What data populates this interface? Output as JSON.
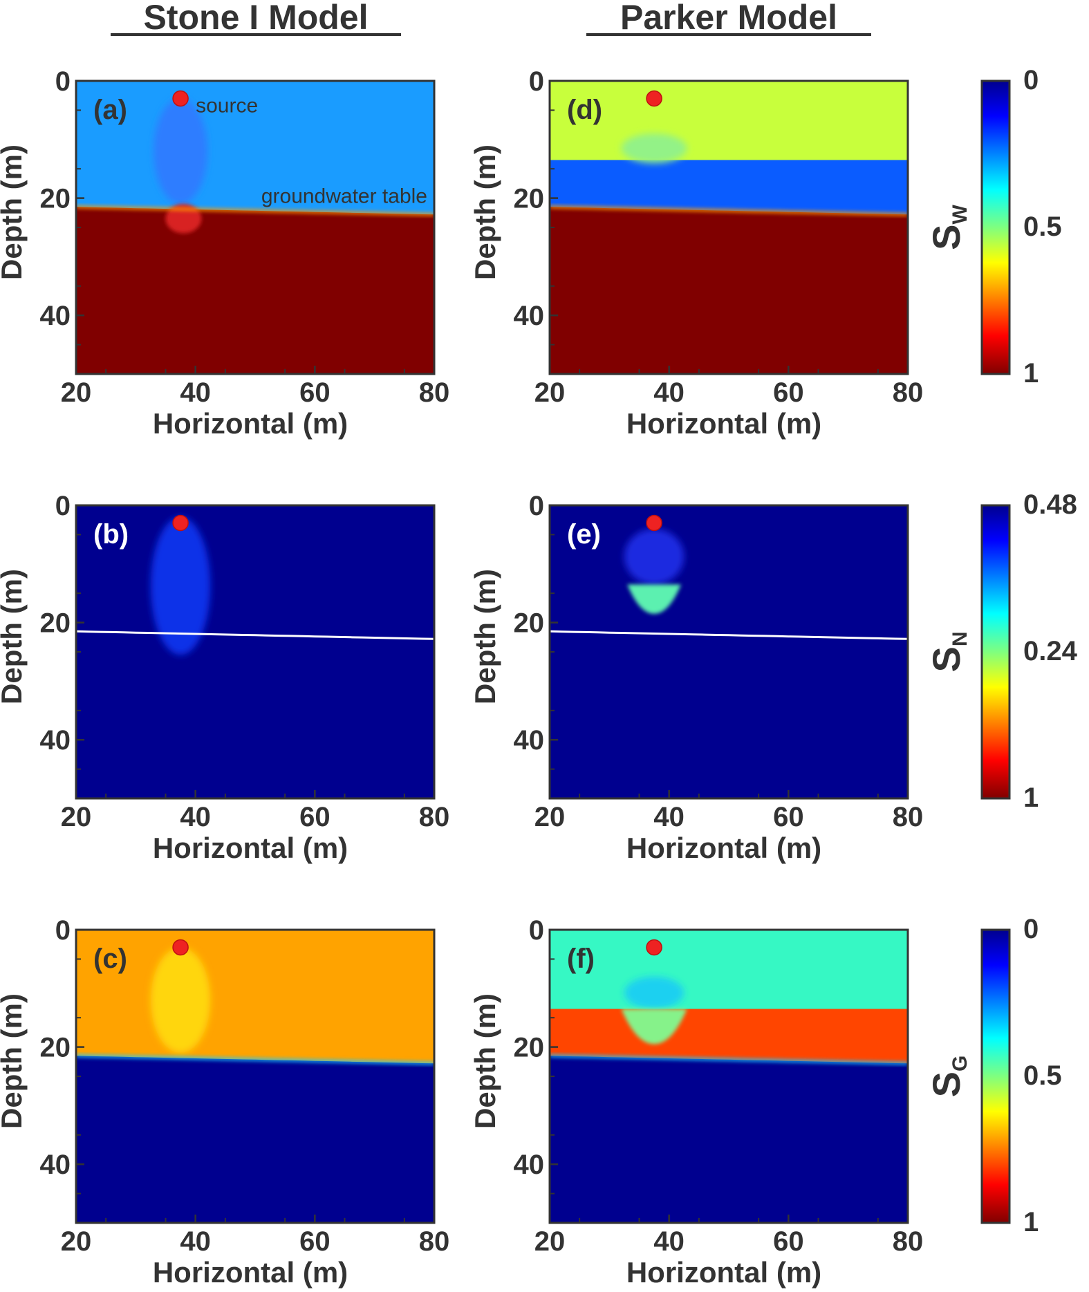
{
  "figure": {
    "column_titles": [
      "Stone I Model",
      "Parker Model"
    ],
    "colors": {
      "deep_red": "#800000",
      "navy": "#00008f",
      "source_dot": "#ee2222",
      "water_table_line": "#ffffff"
    }
  },
  "chart_data": [
    {
      "type": "heatmap",
      "panel": "(a)",
      "model": "Stone I Model",
      "variable": "S_W",
      "xlabel": "Horizontal (m)",
      "ylabel": "Depth (m)",
      "xlim": [
        20,
        80
      ],
      "ylim": [
        50,
        0
      ],
      "xticks": [
        "20",
        "40",
        "60",
        "80"
      ],
      "yticks": [
        "0",
        "20",
        "40"
      ],
      "source": {
        "x": 37.5,
        "depth": 3,
        "label": "source"
      },
      "water_table": {
        "label": "groundwater table",
        "depth_at_x20": 21.5,
        "depth_at_x80": 22.8
      },
      "field": {
        "above_table_color": "#1a9cff",
        "below_table_color": "#800000",
        "plume": {
          "x_center": 37.5,
          "half_width": 4.5,
          "top_depth": 3,
          "bottom_depth": 21,
          "color": "#2f7dff"
        },
        "lobe": {
          "x_center": 38,
          "half_width": 3,
          "top_depth": 21,
          "bottom_depth": 26,
          "color": "#d82020"
        }
      }
    },
    {
      "type": "heatmap",
      "panel": "(b)",
      "model": "Stone I Model",
      "variable": "S_N",
      "xlabel": "Horizontal (m)",
      "ylabel": "Depth (m)",
      "xlim": [
        20,
        80
      ],
      "ylim": [
        50,
        0
      ],
      "xticks": [
        "20",
        "40",
        "60",
        "80"
      ],
      "yticks": [
        "0",
        "20",
        "40"
      ],
      "source": {
        "x": 37.5,
        "depth": 3
      },
      "water_table": {
        "depth_at_x20": 21.5,
        "depth_at_x80": 22.8,
        "shown_as_line": true
      },
      "field": {
        "background_color": "#00008f",
        "plume": {
          "x_center": 37.5,
          "half_width": 5,
          "top_depth": 2,
          "bottom_depth": 25.5,
          "color": "#1030e8"
        }
      }
    },
    {
      "type": "heatmap",
      "panel": "(c)",
      "model": "Stone I Model",
      "variable": "S_G",
      "xlabel": "Horizontal (m)",
      "ylabel": "Depth (m)",
      "xlim": [
        20,
        80
      ],
      "ylim": [
        50,
        0
      ],
      "xticks": [
        "20",
        "40",
        "60",
        "80"
      ],
      "yticks": [
        "0",
        "20",
        "40"
      ],
      "source": {
        "x": 37.5,
        "depth": 3
      },
      "water_table": {
        "depth_at_x20": 21.5,
        "depth_at_x80": 22.8
      },
      "field": {
        "above_table_color": "#ffa300",
        "below_table_color": "#00008f",
        "plume": {
          "x_center": 37.5,
          "half_width": 5,
          "top_depth": 3,
          "bottom_depth": 21,
          "color": "#ffd60a"
        }
      }
    },
    {
      "type": "heatmap",
      "panel": "(d)",
      "model": "Parker Model",
      "variable": "S_W",
      "xlabel": "Horizontal (m)",
      "ylabel": "Depth (m)",
      "xlim": [
        20,
        80
      ],
      "ylim": [
        50,
        0
      ],
      "xticks": [
        "20",
        "40",
        "60",
        "80"
      ],
      "yticks": [
        "0",
        "20",
        "40"
      ],
      "source": {
        "x": 37.5,
        "depth": 3
      },
      "water_table": {
        "depth_at_x20": 21.5,
        "depth_at_x80": 22.8
      },
      "field": {
        "top_layer": {
          "top_depth": 0,
          "bottom_depth": 13.5,
          "color": "#c8ff3c"
        },
        "middle_layer": {
          "top_depth": 13.5,
          "bottom_depth_follows": "water_table",
          "color": "#0a5cff"
        },
        "below_table_color": "#800000",
        "plume": {
          "x_center": 37.5,
          "half_width": 5.5,
          "top_depth": 9,
          "bottom_depth": 14,
          "color": "#93f287"
        }
      }
    },
    {
      "type": "heatmap",
      "panel": "(e)",
      "model": "Parker Model",
      "variable": "S_N",
      "xlabel": "Horizontal (m)",
      "ylabel": "Depth (m)",
      "xlim": [
        20,
        80
      ],
      "ylim": [
        50,
        0
      ],
      "xticks": [
        "20",
        "40",
        "60",
        "80"
      ],
      "yticks": [
        "0",
        "20",
        "40"
      ],
      "source": {
        "x": 37.5,
        "depth": 3
      },
      "water_table": {
        "depth_at_x20": 21.5,
        "depth_at_x80": 22.8,
        "shown_as_line": true
      },
      "field": {
        "background_color": "#00008f",
        "plume": {
          "x_center": 37.5,
          "half_width": 5,
          "top_depth": 4,
          "bottom_depth": 13.5,
          "color": "#1a2be0"
        },
        "bulb": {
          "x_center": 37.5,
          "half_width": 4.5,
          "top_depth": 13.5,
          "bottom_depth": 18.5,
          "color": "#5cf0b0"
        }
      }
    },
    {
      "type": "heatmap",
      "panel": "(f)",
      "model": "Parker Model",
      "variable": "S_G",
      "xlabel": "Horizontal (m)",
      "ylabel": "Depth (m)",
      "xlim": [
        20,
        80
      ],
      "ylim": [
        50,
        0
      ],
      "xticks": [
        "20",
        "40",
        "60",
        "80"
      ],
      "yticks": [
        "0",
        "20",
        "40"
      ],
      "source": {
        "x": 37.5,
        "depth": 3
      },
      "water_table": {
        "depth_at_x20": 21.5,
        "depth_at_x80": 22.8
      },
      "field": {
        "top_layer": {
          "top_depth": 0,
          "bottom_depth": 13.5,
          "color": "#36f8c4"
        },
        "middle_layer": {
          "top_depth": 13.5,
          "bottom_depth_follows": "water_table",
          "color": "#ff4500"
        },
        "below_table_color": "#00008f",
        "plume": {
          "x_center": 37.5,
          "half_width": 5,
          "top_depth": 8,
          "bottom_depth": 13.5,
          "color": "#1ed0f0"
        },
        "bulb": {
          "x_center": 37.5,
          "half_width": 5.5,
          "top_depth": 13.5,
          "bottom_depth": 19.5,
          "color": "#86f28a"
        }
      }
    }
  ],
  "colorbars": [
    {
      "label": "S",
      "subscript": "W",
      "tick_labels": [
        "0",
        "0.5",
        "1"
      ],
      "values": [
        0,
        0.5,
        1
      ],
      "colormap": "jet",
      "direction": "blue_top_to_red_bottom"
    },
    {
      "label": "S",
      "subscript": "N",
      "tick_labels": [
        "0.48",
        "0.24",
        "1"
      ],
      "values": [
        0.48,
        0.24,
        1
      ],
      "colormap": "jet",
      "direction": "blue_top_to_red_bottom"
    },
    {
      "label": "S",
      "subscript": "G",
      "tick_labels": [
        "0",
        "0.5",
        "1"
      ],
      "values": [
        0,
        0.5,
        1
      ],
      "colormap": "jet",
      "direction": "blue_top_to_red_bottom"
    }
  ]
}
